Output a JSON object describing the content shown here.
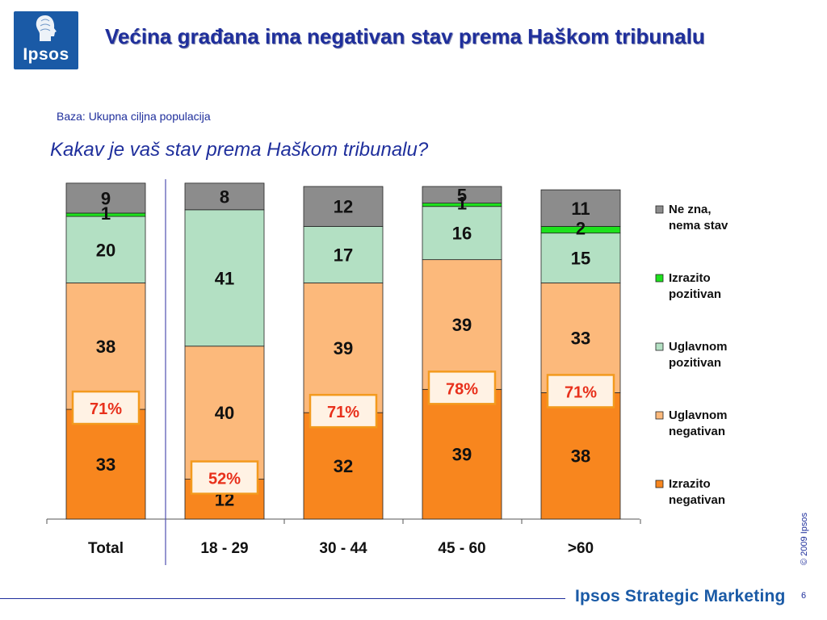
{
  "brand": {
    "logo_text": "Ipsos",
    "footer": "Ipsos Strategic Marketing",
    "copyright": "© 2009 Ipsos",
    "page_number": "6"
  },
  "header": {
    "title": "Većina građana ima negativan stav prema Haškom tribunalu",
    "base": "Baza: Ukupna ciljna populacija",
    "question": "Kakav je vaš stav prema Haškom tribunalu?"
  },
  "colors": {
    "brand_blue": "#1a5aa6",
    "title_blue": "#1f2f9c",
    "total_badge_text": "#e8301b",
    "total_badge_border": "#f39a1e"
  },
  "chart_data": {
    "type": "bar",
    "stacked": true,
    "categories": [
      "Total",
      "18 - 29",
      "30 - 44",
      "45 - 60",
      ">60"
    ],
    "series": [
      {
        "name": "Izrazito negativan",
        "color": "#f8861e",
        "values": [
          33,
          12,
          32,
          39,
          38
        ]
      },
      {
        "name": "Uglavnom negativan",
        "color": "#fcb97b",
        "values": [
          38,
          40,
          39,
          39,
          33
        ]
      },
      {
        "name": "Uglavnom pozitivan",
        "color": "#b3e0c3",
        "values": [
          20,
          41,
          17,
          16,
          15
        ]
      },
      {
        "name": "Izrazito pozitivan",
        "color": "#1de11d",
        "values": [
          1,
          0,
          0,
          1,
          2
        ]
      },
      {
        "name": "Ne zna, nema stav",
        "color": "#8c8c8c",
        "values": [
          9,
          8,
          12,
          5,
          11
        ]
      }
    ],
    "legend_labels": [
      [
        "Ne zna,",
        "nema stav"
      ],
      [
        "Izrazito",
        "pozitivan"
      ],
      [
        "Uglavnom",
        "pozitivan"
      ],
      [
        "Uglavnom",
        "negativan"
      ],
      [
        "Izrazito",
        "negativan"
      ]
    ],
    "negative_totals": [
      "71%",
      "52%",
      "71%",
      "78%",
      "71%"
    ],
    "legend_position": "right",
    "ylim": [
      0,
      100
    ],
    "grid": false
  }
}
